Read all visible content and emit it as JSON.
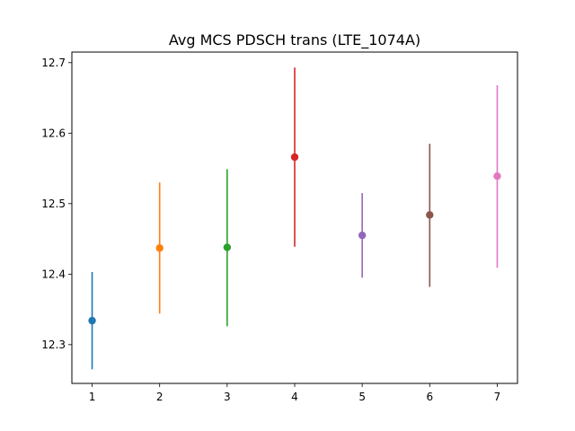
{
  "chart_data": {
    "type": "errorbar",
    "title": "Avg MCS PDSCH trans (LTE_1074A)",
    "xlabel": "",
    "ylabel": "",
    "x_ticks": [
      1,
      2,
      3,
      4,
      5,
      6,
      7
    ],
    "y_ticks": [
      "12.3",
      "12.4",
      "12.5",
      "12.6",
      "12.7"
    ],
    "xlim": [
      0.7,
      7.3
    ],
    "ylim": [
      12.245,
      12.715
    ],
    "points": [
      {
        "x": 1,
        "y": 12.334,
        "low": 12.265,
        "high": 12.403,
        "color": "#1f77b4"
      },
      {
        "x": 2,
        "y": 12.437,
        "low": 12.344,
        "high": 12.53,
        "color": "#ff7f0e"
      },
      {
        "x": 3,
        "y": 12.438,
        "low": 12.326,
        "high": 12.549,
        "color": "#2ca02c"
      },
      {
        "x": 4,
        "y": 12.566,
        "low": 12.439,
        "high": 12.693,
        "color": "#d62728"
      },
      {
        "x": 5,
        "y": 12.455,
        "low": 12.395,
        "high": 12.515,
        "color": "#9467bd"
      },
      {
        "x": 6,
        "y": 12.484,
        "low": 12.382,
        "high": 12.585,
        "color": "#8c564b"
      },
      {
        "x": 7,
        "y": 12.539,
        "low": 12.409,
        "high": 12.668,
        "color": "#e377c2"
      }
    ]
  }
}
